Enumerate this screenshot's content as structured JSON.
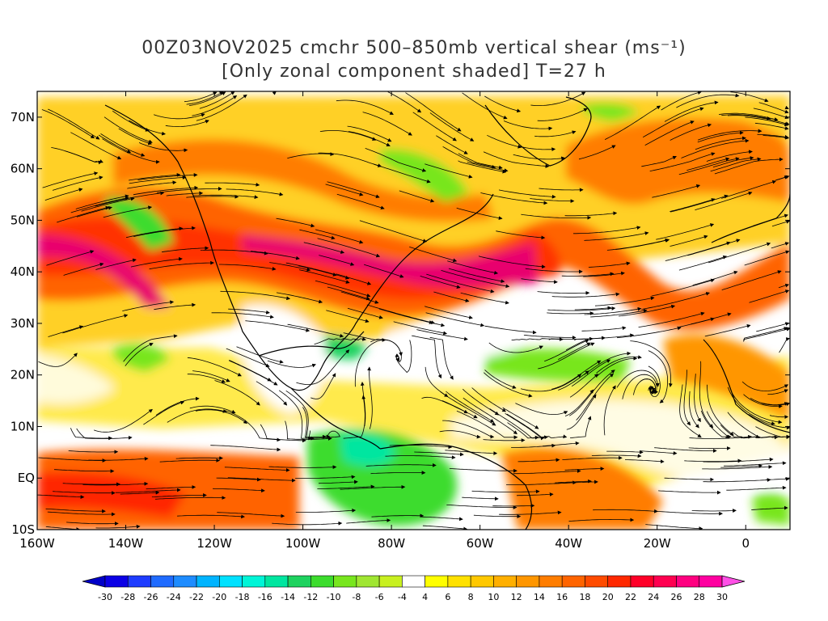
{
  "title_line1": "00Z03NOV2025 cmchr 500–850mb vertical shear (ms⁻¹)",
  "title_line2": "[Only zonal component shaded] T=27 h",
  "map": {
    "lon_range": [
      -160,
      10
    ],
    "lat_range": [
      -10,
      75
    ],
    "lat_ticks": [
      {
        "value": 70,
        "label": "70N"
      },
      {
        "value": 60,
        "label": "60N"
      },
      {
        "value": 50,
        "label": "50N"
      },
      {
        "value": 40,
        "label": "40N"
      },
      {
        "value": 30,
        "label": "30N"
      },
      {
        "value": 20,
        "label": "20N"
      },
      {
        "value": 10,
        "label": "10N"
      },
      {
        "value": 0,
        "label": "EQ"
      },
      {
        "value": -10,
        "label": "10S"
      }
    ],
    "lon_ticks": [
      {
        "value": -160,
        "label": "160W"
      },
      {
        "value": -140,
        "label": "140W"
      },
      {
        "value": -120,
        "label": "120W"
      },
      {
        "value": -100,
        "label": "100W"
      },
      {
        "value": -80,
        "label": "80W"
      },
      {
        "value": -60,
        "label": "60W"
      },
      {
        "value": -40,
        "label": "40W"
      },
      {
        "value": -20,
        "label": "20W"
      },
      {
        "value": 0,
        "label": "0"
      }
    ]
  },
  "colorbar": {
    "labels": [
      "-30",
      "-28",
      "-26",
      "-24",
      "-22",
      "-20",
      "-18",
      "-16",
      "-14",
      "-12",
      "-10",
      "-8",
      "-6",
      "-4",
      "4",
      "6",
      "8",
      "10",
      "12",
      "14",
      "16",
      "18",
      "20",
      "22",
      "24",
      "26",
      "28",
      "30"
    ],
    "colors": [
      "#0b00e5",
      "#1e3cff",
      "#1f6bff",
      "#1e8cff",
      "#00b4ff",
      "#00e1ff",
      "#00f5d7",
      "#00e6a0",
      "#1ed25f",
      "#3cdc2d",
      "#78e61e",
      "#a0e632",
      "#c8f020",
      "#ffffff",
      "#ffff00",
      "#ffe100",
      "#ffc800",
      "#ffaf00",
      "#ff9600",
      "#ff7d00",
      "#ff6400",
      "#ff4b00",
      "#ff2800",
      "#ff0028",
      "#ff0050",
      "#ff0080",
      "#ff00a0"
    ],
    "min_arrow_color": "#0000c8",
    "max_arrow_color": "#ff50e6"
  },
  "shading_palette": {
    "strong_positive": "#e8006e",
    "positive_high": "#ff3c00",
    "positive_mid": "#ff7d00",
    "positive_low": "#ffc800",
    "weak_positive": "#ffff00",
    "negative": "#78e61e",
    "strong_negative": "#1ed25f"
  }
}
